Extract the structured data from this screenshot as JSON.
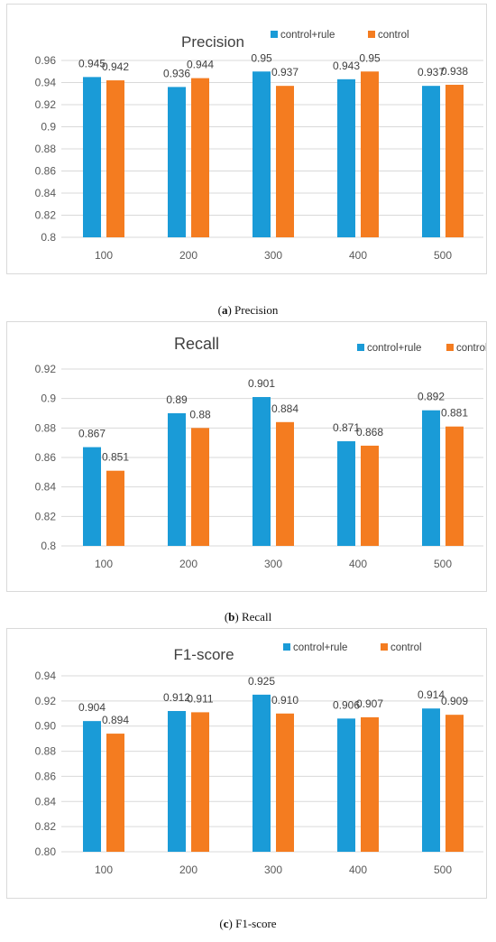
{
  "colors": {
    "control_rule": "#1a9bd7",
    "control": "#f47c20",
    "grid": "#d9d9d9",
    "axis_text": "#595959"
  },
  "captions": [
    {
      "paren_open": "(",
      "letter": "a",
      "rest": ") Precision"
    },
    {
      "paren_open": "(",
      "letter": "b",
      "rest": ") Recall"
    },
    {
      "paren_open": "(",
      "letter": "c",
      "rest": ") F1-score"
    }
  ],
  "chart_data": [
    {
      "type": "bar",
      "title": "Precision",
      "categories": [
        "100",
        "200",
        "300",
        "400",
        "500"
      ],
      "series": [
        {
          "name": "control+rule",
          "values": [
            0.945,
            0.936,
            0.95,
            0.943,
            0.937
          ],
          "labels": [
            "0.945",
            "0.936",
            "0.95",
            "0.943",
            "0.937"
          ]
        },
        {
          "name": "control",
          "values": [
            0.942,
            0.944,
            0.937,
            0.95,
            0.938
          ],
          "labels": [
            "0.942",
            "0.944",
            "0.937",
            "0.95",
            "0.938"
          ]
        }
      ],
      "ylim": [
        0.8,
        0.96
      ],
      "yticks": [
        "0.8",
        "0.82",
        "0.84",
        "0.86",
        "0.88",
        "0.9",
        "0.92",
        "0.94",
        "0.96"
      ],
      "grid": true,
      "legend": "top-right"
    },
    {
      "type": "bar",
      "title": "Recall",
      "categories": [
        "100",
        "200",
        "300",
        "400",
        "500"
      ],
      "series": [
        {
          "name": "control+rule",
          "values": [
            0.867,
            0.89,
            0.901,
            0.871,
            0.892
          ],
          "labels": [
            "0.867",
            "0.89",
            "0.901",
            "0.871",
            "0.892"
          ]
        },
        {
          "name": "control",
          "values": [
            0.851,
            0.88,
            0.884,
            0.868,
            0.881
          ],
          "labels": [
            "0.851",
            "0.88",
            "0.884",
            "0.868",
            "0.881"
          ]
        }
      ],
      "ylim": [
        0.8,
        0.92
      ],
      "yticks": [
        "0.8",
        "0.82",
        "0.84",
        "0.86",
        "0.88",
        "0.9",
        "0.92"
      ],
      "grid": true,
      "legend": "top-right"
    },
    {
      "type": "bar",
      "title": "F1-score",
      "categories": [
        "100",
        "200",
        "300",
        "400",
        "500"
      ],
      "series": [
        {
          "name": "control+rule",
          "values": [
            0.904,
            0.912,
            0.925,
            0.906,
            0.914
          ],
          "labels": [
            "0.904",
            "0.912",
            "0.925",
            "0.906",
            "0.914"
          ]
        },
        {
          "name": "control",
          "values": [
            0.894,
            0.911,
            0.91,
            0.907,
            0.909
          ],
          "labels": [
            "0.894",
            "0.911",
            "0.910",
            "0.907",
            "0.909"
          ]
        }
      ],
      "ylim": [
        0.8,
        0.94
      ],
      "yticks": [
        "0.80",
        "0.82",
        "0.84",
        "0.86",
        "0.88",
        "0.90",
        "0.92",
        "0.94"
      ],
      "grid": true,
      "legend": "top-right"
    }
  ]
}
